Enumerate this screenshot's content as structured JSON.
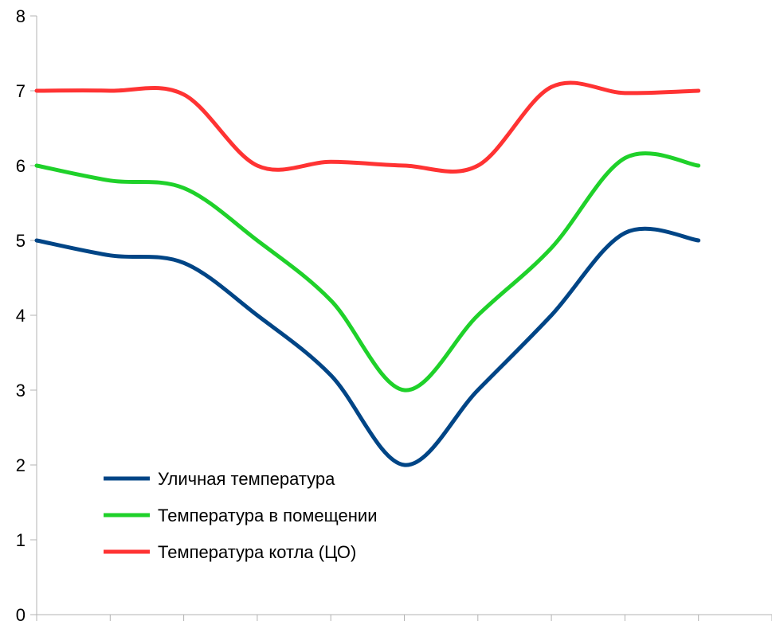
{
  "chart_data": {
    "type": "line",
    "title": "",
    "xlabel": "",
    "ylabel": "",
    "ylim": [
      0,
      8
    ],
    "y_ticks": [
      0,
      1,
      2,
      3,
      4,
      5,
      6,
      7,
      8
    ],
    "y_tick_labels": [
      "0",
      "1",
      "2",
      "3",
      "4",
      "5",
      "6",
      "7",
      "8"
    ],
    "x_categories": 10,
    "x_tick_labels": [],
    "smooth": true,
    "grid": false,
    "legend_position": "bottom-left",
    "series": [
      {
        "name": "Уличная температура",
        "color": "#004586",
        "values": [
          5,
          4.8,
          4.7,
          4.0,
          3.2,
          2.0,
          3.0,
          4.0,
          5.1,
          5.0
        ]
      },
      {
        "name": "Температура в помещении",
        "color": "#1fd12a",
        "values": [
          6,
          5.8,
          5.7,
          5.0,
          4.2,
          3.0,
          4.0,
          4.9,
          6.1,
          6.0
        ]
      },
      {
        "name": "Температура котла (ЦО)",
        "color": "#ff3333",
        "values": [
          7,
          7.0,
          6.95,
          6.0,
          6.05,
          6.0,
          6.0,
          7.05,
          6.97,
          7.0
        ]
      }
    ]
  }
}
